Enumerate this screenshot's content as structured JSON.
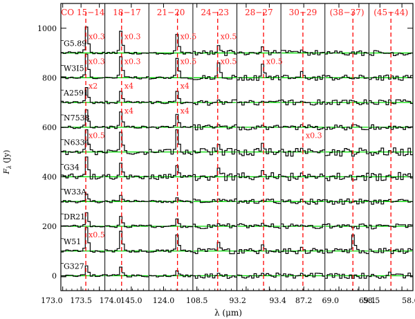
{
  "chart_data": {
    "type": "line",
    "ylabel_main": "F",
    "ylabel_sub": "λ",
    "ylabel_unit": "(Jy)",
    "xlabel": "λ (μm)",
    "ylim": [
      -60,
      1100
    ],
    "yticks": [
      0,
      200,
      400,
      600,
      800,
      1000
    ],
    "panels": [
      {
        "label": "CO 15−14",
        "x_ticks": [
          "173.0",
          "173.5",
          "174.0"
        ],
        "x_range": [
          172.95,
          174.15
        ],
        "line": 173.63
      },
      {
        "label": "18−17",
        "x_ticks": [
          "145.0"
        ],
        "x_range": [
          144.4,
          145.4
        ],
        "line": 144.78
      },
      {
        "label": "21−20",
        "x_ticks": [
          "124.0"
        ],
        "x_range": [
          123.8,
          124.4
        ],
        "line": 124.19
      },
      {
        "label": "24−23",
        "x_ticks": [
          "108.5"
        ],
        "x_range": [
          108.45,
          109.0
        ],
        "line": 108.76
      },
      {
        "label": "28−27",
        "x_ticks": [
          "93.2",
          "93.4"
        ],
        "x_range": [
          93.12,
          93.5
        ],
        "line": 93.35
      },
      {
        "label": "30−29",
        "x_ticks": [
          "87.2"
        ],
        "x_range": [
          86.93,
          87.45
        ],
        "line": 87.19
      },
      {
        "label": "(38−37)",
        "x_ticks": [
          "69.0",
          "69.1"
        ],
        "x_range": [
          68.93,
          69.15
        ],
        "line": 69.07
      },
      {
        "label": "(45−44)",
        "x_ticks": [
          "58.5",
          "58.6"
        ],
        "x_range": [
          58.45,
          58.65
        ],
        "line": 58.55
      }
    ],
    "sources": [
      {
        "name": "G5.89",
        "offset": 900
      },
      {
        "name": "W3I5",
        "offset": 800
      },
      {
        "name": "A2591",
        "offset": 700
      },
      {
        "name": "N7538",
        "offset": 600
      },
      {
        "name": "N6334",
        "offset": 500
      },
      {
        "name": "G34",
        "offset": 400
      },
      {
        "name": "W33A",
        "offset": 300
      },
      {
        "name": "DR21",
        "offset": 200
      },
      {
        "name": "W51",
        "offset": 100
      },
      {
        "name": "G327",
        "offset": 0
      }
    ],
    "peaks": [
      [
        105,
        88,
        75,
        30,
        25,
        12,
        0,
        0
      ],
      [
        95,
        85,
        78,
        60,
        55,
        25,
        0,
        0
      ],
      [
        60,
        45,
        45,
        10,
        5,
        5,
        0,
        0
      ],
      [
        70,
        62,
        52,
        10,
        8,
        10,
        0,
        0
      ],
      [
        90,
        80,
        90,
        30,
        35,
        15,
        0,
        0
      ],
      [
        80,
        55,
        45,
        35,
        25,
        15,
        0,
        0
      ],
      [
        30,
        25,
        15,
        10,
        5,
        0,
        0,
        0
      ],
      [
        55,
        40,
        30,
        10,
        12,
        5,
        0,
        0
      ],
      [
        95,
        80,
        65,
        35,
        25,
        15,
        65,
        0
      ],
      [
        40,
        35,
        20,
        10,
        10,
        10,
        0,
        15
      ]
    ],
    "scale_labels": [
      {
        "source": "G5.89",
        "panel": 0,
        "text": "x0.3"
      },
      {
        "source": "G5.89",
        "panel": 1,
        "text": "x0.3"
      },
      {
        "source": "G5.89",
        "panel": 2,
        "text": "x0.5"
      },
      {
        "source": "G5.89",
        "panel": 3,
        "text": "x0.5"
      },
      {
        "source": "W3I5",
        "panel": 0,
        "text": "x0.3"
      },
      {
        "source": "W3I5",
        "panel": 1,
        "text": "x0.3"
      },
      {
        "source": "W3I5",
        "panel": 2,
        "text": "x0.5"
      },
      {
        "source": "W3I5",
        "panel": 3,
        "text": "x0.5"
      },
      {
        "source": "W3I5",
        "panel": 4,
        "text": "x0.5"
      },
      {
        "source": "A2591",
        "panel": 0,
        "text": "x2"
      },
      {
        "source": "A2591",
        "panel": 1,
        "text": "x4"
      },
      {
        "source": "A2591",
        "panel": 2,
        "text": "x4"
      },
      {
        "source": "N7538",
        "panel": 1,
        "text": "x4"
      },
      {
        "source": "N7538",
        "panel": 2,
        "text": "x4"
      },
      {
        "source": "N6334",
        "panel": 0,
        "text": "x0.5"
      },
      {
        "source": "N6334",
        "panel": 5,
        "text": "x0.3"
      },
      {
        "source": "W51",
        "panel": 0,
        "text": "x0.5"
      }
    ],
    "colors": {
      "spectrum": "#000000",
      "baseline": "#00dd00",
      "line_marker": "#ff0000",
      "annotation": "#ff2020"
    }
  }
}
